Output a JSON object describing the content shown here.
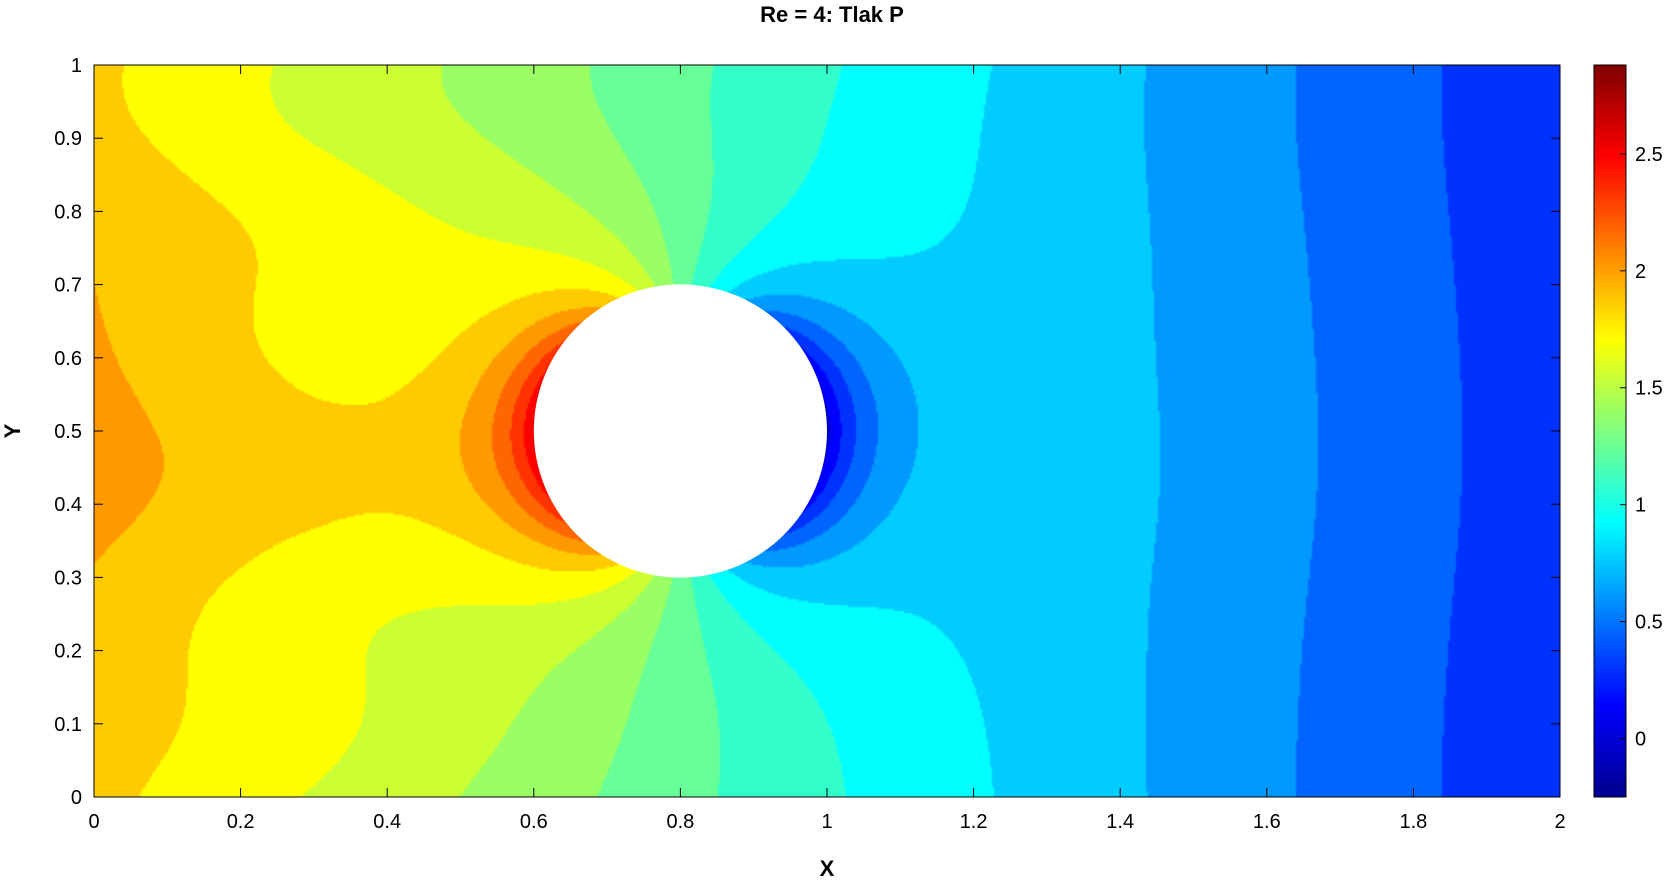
{
  "chart_data": {
    "type": "heatmap",
    "title": "Re = 4: Tlak P",
    "xlabel": "X",
    "ylabel": "Y",
    "xlim": [
      0,
      2
    ],
    "ylim": [
      0,
      1
    ],
    "x_ticks": [
      "0",
      "0.2",
      "0.4",
      "0.6",
      "0.8",
      "1",
      "1.2",
      "1.4",
      "1.6",
      "1.8",
      "2"
    ],
    "y_ticks": [
      "0",
      "0.1",
      "0.2",
      "0.3",
      "0.4",
      "0.5",
      "0.6",
      "0.7",
      "0.8",
      "0.9",
      "1"
    ],
    "colorbar": {
      "range": [
        -0.25,
        2.88
      ],
      "ticks": [
        "0",
        "0.5",
        "1",
        "1.5",
        "2",
        "2.5"
      ],
      "colormap": "jet"
    },
    "obstacle": {
      "shape": "circle",
      "center": [
        0.8,
        0.5
      ],
      "radius": 0.2
    },
    "field": {
      "min": -0.25,
      "max": 2.88,
      "levels": 20
    }
  }
}
